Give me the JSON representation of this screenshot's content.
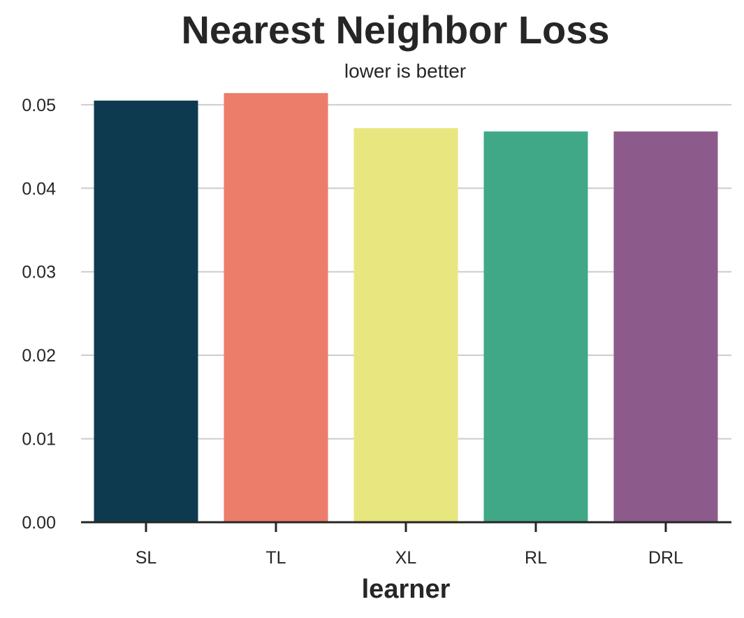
{
  "chart_data": {
    "type": "bar",
    "title": "Nearest Neighbor Loss",
    "subtitle": "lower is better",
    "xlabel": "learner",
    "ylabel": "",
    "categories": [
      "SL",
      "TL",
      "XL",
      "RL",
      "DRL"
    ],
    "values": [
      0.0505,
      0.0514,
      0.0472,
      0.0468,
      0.0468
    ],
    "colors": [
      "#0e3a50",
      "#eb7d6a",
      "#e8e67f",
      "#40a887",
      "#8c5b8b"
    ],
    "ylim": [
      0,
      0.0525
    ],
    "yticks": [
      0.0,
      0.01,
      0.02,
      0.03,
      0.04,
      0.05
    ],
    "ytick_labels": [
      "0.00",
      "0.01",
      "0.02",
      "0.03",
      "0.04",
      "0.05"
    ],
    "grid": "y",
    "legend": "none"
  }
}
